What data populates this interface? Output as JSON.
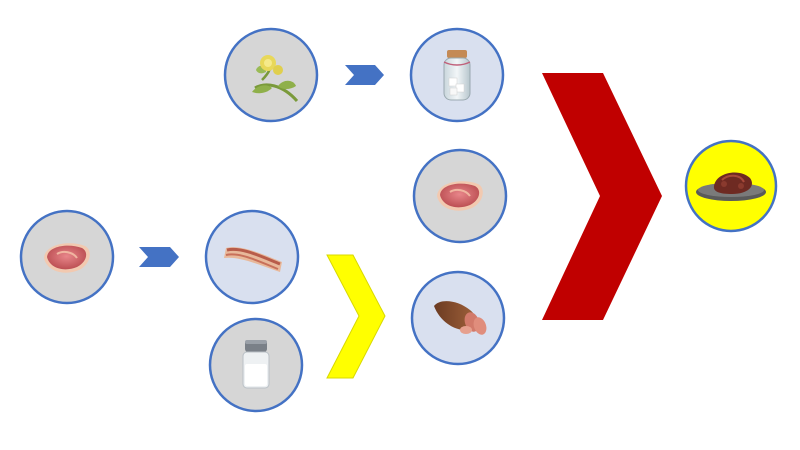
{
  "diagram": {
    "nodes": [
      {
        "id": "plant",
        "icon": "flowering-plant-icon",
        "fill": "#d6d6d6"
      },
      {
        "id": "sugar-jar",
        "icon": "sugar-jar-icon",
        "fill": "#d9e0ef"
      },
      {
        "id": "raw-meat-1",
        "icon": "raw-steak-icon",
        "fill": "#d6d6d6"
      },
      {
        "id": "raw-meat-2",
        "icon": "raw-steak-icon",
        "fill": "#d6d6d6"
      },
      {
        "id": "bacon",
        "icon": "bacon-strip-icon",
        "fill": "#d9e0ef"
      },
      {
        "id": "salt",
        "icon": "salt-shaker-icon",
        "fill": "#d6d6d6"
      },
      {
        "id": "ham",
        "icon": "cured-ham-icon",
        "fill": "#d9e0ef"
      },
      {
        "id": "result",
        "icon": "roast-meat-plate-icon",
        "fill": "#ffff00"
      }
    ],
    "arrows": [
      {
        "from": "plant",
        "to": "sugar-jar",
        "style": "small",
        "color": "#4472c4"
      },
      {
        "from": "raw-meat-1",
        "to": "bacon",
        "style": "small",
        "color": "#4472c4"
      },
      {
        "from": [
          "bacon",
          "salt"
        ],
        "to": "ham",
        "style": "chevron",
        "color": "#ffff00"
      },
      {
        "from": [
          "sugar-jar",
          "raw-meat-2",
          "ham"
        ],
        "to": "result",
        "style": "chevron",
        "color": "#c00000"
      }
    ],
    "colors": {
      "circle_border": "#4472c4",
      "grey_fill": "#d6d6d6",
      "blue_fill": "#d9e0ef",
      "result_fill": "#ffff00",
      "big_chevron": "#c00000",
      "mid_chevron": "#ffff00",
      "small_arrow": "#4472c4"
    }
  }
}
